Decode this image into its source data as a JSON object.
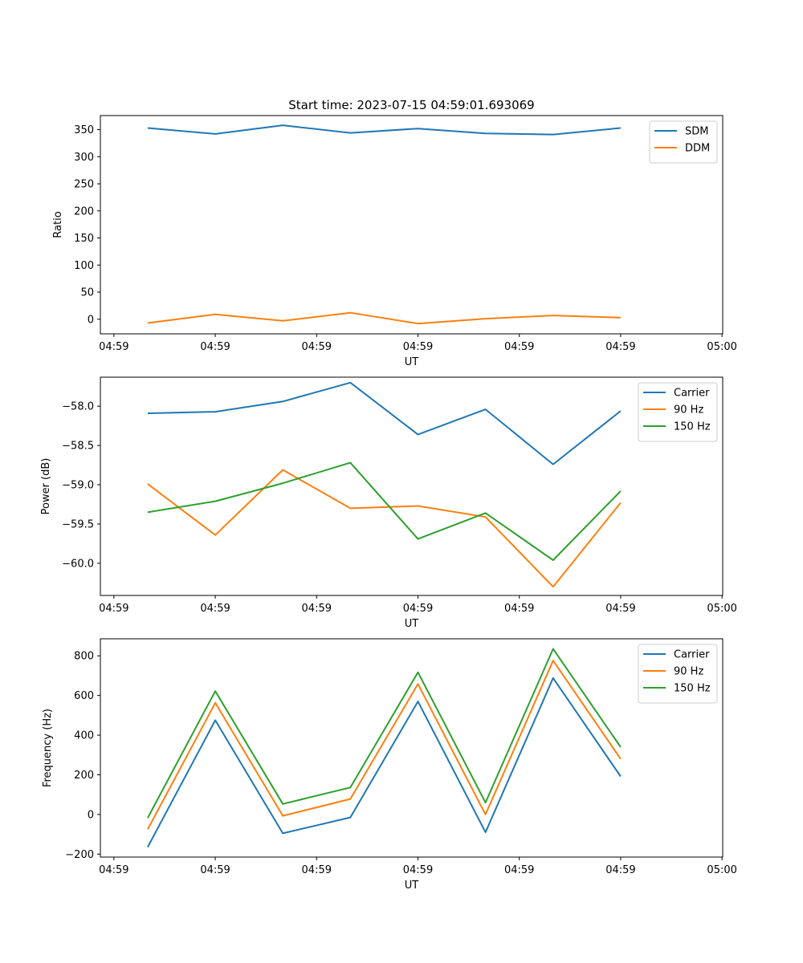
{
  "figure_title": "Start time: 2023-07-15 04:59:01.693069",
  "colors": {
    "blue": "#1f77b4",
    "orange": "#ff7f0e",
    "green": "#2ca02c"
  },
  "chart_data": [
    {
      "type": "line",
      "title": "Start time: 2023-07-15 04:59:01.693069",
      "xlabel": "UT",
      "ylabel": "Ratio",
      "x": [
        1,
        2,
        3,
        4,
        5,
        6,
        7,
        8
      ],
      "xlim": [
        0.3,
        9.51
      ],
      "x_ticks": [
        0.5,
        2.0,
        3.5,
        5.0,
        6.5,
        8.0,
        9.5
      ],
      "x_tick_labels": [
        "04:59",
        "04:59",
        "04:59",
        "04:59",
        "04:59",
        "04:59",
        "05:00"
      ],
      "ylim": [
        -27,
        376
      ],
      "y_ticks": [
        0,
        50,
        100,
        150,
        200,
        250,
        300,
        350
      ],
      "y_tick_labels": [
        "0",
        "50",
        "100",
        "150",
        "200",
        "250",
        "300",
        "350"
      ],
      "legend": "top-right",
      "series": [
        {
          "name": "SDM",
          "color": "#1f77b4",
          "values": [
            353,
            342,
            358,
            344,
            352,
            343,
            341,
            353
          ]
        },
        {
          "name": "DDM",
          "color": "#ff7f0e",
          "values": [
            -7,
            9,
            -3,
            12,
            -8,
            1,
            7,
            3
          ]
        }
      ]
    },
    {
      "type": "line",
      "xlabel": "UT",
      "ylabel": "Power (dB)",
      "x": [
        1,
        2,
        3,
        4,
        5,
        6,
        7,
        8
      ],
      "xlim": [
        0.3,
        9.51
      ],
      "x_ticks": [
        0.5,
        2.0,
        3.5,
        5.0,
        6.5,
        8.0,
        9.5
      ],
      "x_tick_labels": [
        "04:59",
        "04:59",
        "04:59",
        "04:59",
        "04:59",
        "04:59",
        "05:00"
      ],
      "ylim": [
        -60.41,
        -57.63
      ],
      "y_ticks": [
        -60.0,
        -59.5,
        -59.0,
        -58.5,
        -58.0
      ],
      "y_tick_labels": [
        "−60.0",
        "−59.5",
        "−59.0",
        "−58.5",
        "−58.0"
      ],
      "legend": "top-right",
      "series": [
        {
          "name": "Carrier",
          "color": "#1f77b4",
          "values": [
            -58.09,
            -58.07,
            -57.94,
            -57.7,
            -58.36,
            -58.04,
            -58.74,
            -58.06
          ]
        },
        {
          "name": "90 Hz",
          "color": "#ff7f0e",
          "values": [
            -58.99,
            -59.64,
            -58.81,
            -59.3,
            -59.27,
            -59.41,
            -60.3,
            -59.23
          ]
        },
        {
          "name": "150 Hz",
          "color": "#2ca02c",
          "values": [
            -59.35,
            -59.21,
            -58.98,
            -58.72,
            -59.69,
            -59.36,
            -59.96,
            -59.08
          ]
        }
      ]
    },
    {
      "type": "line",
      "xlabel": "UT",
      "ylabel": "Frequency (Hz)",
      "x": [
        1,
        2,
        3,
        4,
        5,
        6,
        7,
        8
      ],
      "xlim": [
        0.3,
        9.51
      ],
      "x_ticks": [
        0.5,
        2.0,
        3.5,
        5.0,
        6.5,
        8.0,
        9.5
      ],
      "x_tick_labels": [
        "04:59",
        "04:59",
        "04:59",
        "04:59",
        "04:59",
        "04:59",
        "05:00"
      ],
      "ylim": [
        -215,
        886
      ],
      "y_ticks": [
        -200,
        0,
        200,
        400,
        600,
        800
      ],
      "y_tick_labels": [
        "−200",
        "0",
        "200",
        "400",
        "600",
        "800"
      ],
      "legend": "top-right",
      "series": [
        {
          "name": "Carrier",
          "color": "#1f77b4",
          "values": [
            -165,
            475,
            -95,
            -15,
            570,
            -90,
            688,
            192
          ]
        },
        {
          "name": "90 Hz",
          "color": "#ff7f0e",
          "values": [
            -75,
            563,
            -7,
            78,
            658,
            0,
            776,
            280
          ]
        },
        {
          "name": "150 Hz",
          "color": "#2ca02c",
          "values": [
            -18,
            622,
            53,
            136,
            717,
            60,
            835,
            340
          ]
        }
      ]
    }
  ]
}
